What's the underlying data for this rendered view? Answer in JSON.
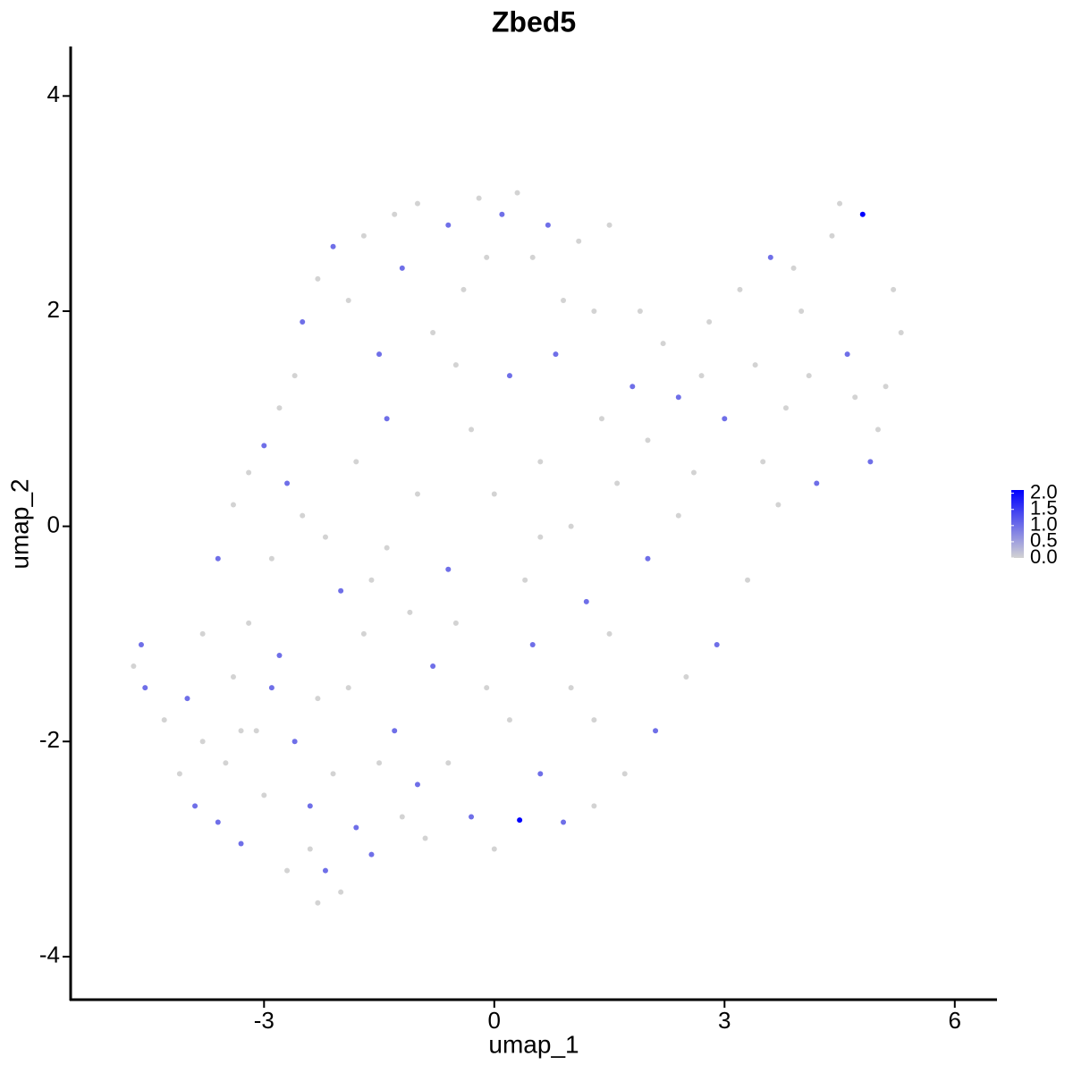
{
  "chart_data": {
    "type": "scatter",
    "title": "Zbed5",
    "x_label": "umap_1",
    "y_label": "umap_2",
    "x": [
      -4.7,
      -4.6,
      -4.55,
      -4.3,
      -4.1,
      -4.0,
      -3.9,
      -3.8,
      -3.6,
      -3.5,
      -3.4,
      -3.3,
      -3.2,
      -3.1,
      -3.0,
      -2.9,
      -2.8,
      -2.7,
      -2.6,
      -2.5,
      -2.4,
      -2.3,
      -2.2,
      -2.1,
      -2.0,
      -1.9,
      -1.8,
      -1.7,
      -1.6,
      -1.5,
      -1.4,
      -1.3,
      -1.2,
      -1.1,
      -1.0,
      -3.6,
      -3.4,
      -3.2,
      -3.0,
      -2.8,
      -2.6,
      -2.5,
      -2.3,
      -2.1,
      -1.9,
      -1.7,
      -1.5,
      -1.3,
      -1.2,
      -1.0,
      -0.8,
      -0.6,
      -0.4,
      -0.2,
      0.1,
      0.3,
      0.5,
      0.7,
      0.9,
      1.1,
      1.3,
      1.5,
      -2.7,
      -2.2,
      -1.8,
      -1.4,
      -1.0,
      -0.6,
      -0.3,
      0.0,
      0.2,
      0.4,
      0.6,
      0.8,
      1.0,
      1.2,
      1.4,
      1.6,
      1.8,
      2.0,
      2.2,
      2.4,
      2.6,
      2.8,
      3.0,
      3.2,
      3.4,
      3.6,
      3.8,
      4.0,
      4.2,
      4.4,
      4.6,
      4.8,
      5.0,
      5.2,
      5.3,
      4.9,
      4.5,
      4.1,
      3.7,
      3.3,
      2.9,
      2.5,
      2.1,
      1.7,
      1.3,
      0.9,
      0.33,
      0.0,
      -0.3,
      -0.6,
      -0.9,
      0.2,
      0.6,
      1.0,
      1.5,
      2.0,
      2.4,
      -0.8,
      -0.5,
      -0.1,
      0.5,
      1.3,
      -2.9,
      -3.8,
      -2.4,
      -2.0,
      -2.3,
      -0.1,
      -0.5,
      3.9,
      2.7,
      4.7,
      5.1,
      3.5,
      1.9,
      0.6,
      -1.6,
      -3.3
    ],
    "values_y": [
      -1.3,
      -1.1,
      -1.5,
      -1.8,
      -2.3,
      -1.6,
      -2.6,
      -2.0,
      -2.75,
      -2.2,
      -1.4,
      -2.95,
      -0.9,
      -1.9,
      -2.5,
      -0.3,
      -1.2,
      -3.2,
      -2.0,
      0.1,
      -3.0,
      -1.6,
      -3.2,
      -2.3,
      -0.6,
      -1.5,
      -2.8,
      -1.0,
      -3.05,
      -2.2,
      -0.2,
      -1.9,
      -2.7,
      -0.8,
      -2.4,
      -0.3,
      0.2,
      0.5,
      0.75,
      1.1,
      1.4,
      1.9,
      2.3,
      2.6,
      2.1,
      2.7,
      1.6,
      2.9,
      2.4,
      3.0,
      1.8,
      2.8,
      2.2,
      3.05,
      2.9,
      3.1,
      2.5,
      2.8,
      2.1,
      2.65,
      2.0,
      2.8,
      0.4,
      -0.1,
      0.6,
      1.0,
      0.3,
      -0.4,
      0.9,
      0.3,
      1.4,
      -0.5,
      0.6,
      1.6,
      0.0,
      -0.7,
      1.0,
      0.4,
      1.3,
      0.8,
      1.7,
      1.2,
      0.5,
      1.9,
      1.0,
      2.2,
      1.5,
      2.5,
      1.1,
      2.0,
      0.4,
      2.7,
      1.6,
      2.9,
      0.9,
      2.2,
      1.8,
      0.6,
      3.0,
      1.4,
      0.2,
      -0.5,
      -1.1,
      -1.4,
      -1.9,
      -2.3,
      -2.6,
      -2.75,
      -2.73,
      -3.0,
      -2.7,
      -2.2,
      -2.9,
      -1.8,
      -2.3,
      -1.5,
      -1.0,
      -0.3,
      0.1,
      -1.3,
      -0.9,
      -1.5,
      -1.1,
      -1.8,
      -1.5,
      -1.0,
      -2.6,
      -3.4,
      -3.5,
      2.5,
      1.5,
      2.4,
      1.4,
      1.2,
      1.3,
      0.6,
      2.0,
      -0.1,
      -0.5,
      -1.9
    ],
    "values": [
      0,
      1,
      1,
      0,
      0,
      1,
      1,
      0,
      1,
      0,
      0,
      1,
      0,
      0,
      0,
      0,
      1,
      0,
      1,
      0,
      0,
      0,
      1,
      0,
      1,
      0,
      1,
      0,
      1,
      0,
      0,
      1,
      0,
      0,
      1,
      1,
      0,
      0,
      1,
      0,
      0,
      1,
      0,
      1,
      0,
      0,
      1,
      0,
      1,
      0,
      0,
      1,
      0,
      0,
      1,
      0,
      0,
      1,
      0,
      0,
      0,
      0,
      1,
      0,
      0,
      1,
      0,
      1,
      0,
      0,
      1,
      0,
      0,
      1,
      0,
      1,
      0,
      0,
      1,
      0,
      0,
      1,
      0,
      0,
      1,
      0,
      0,
      1,
      0,
      0,
      1,
      0,
      1,
      2.1,
      0,
      0,
      0,
      1,
      0,
      0,
      0,
      0,
      1,
      0,
      1,
      0,
      0,
      1,
      2.1,
      0,
      1,
      0,
      0,
      0,
      1,
      0,
      0,
      1,
      0,
      1,
      0,
      0,
      1,
      0,
      1,
      0,
      1,
      0,
      0,
      0,
      0,
      0,
      0,
      0,
      0,
      0,
      0,
      0,
      0,
      0
    ],
    "xlim": [
      -5.52,
      6.55
    ],
    "ylim": [
      -4.4,
      4.46
    ],
    "xticks": [
      -3,
      0,
      3,
      6
    ],
    "yticks": [
      -4,
      -2,
      0,
      2,
      4
    ],
    "colorscale": [
      "#d3d3d3",
      "#0000ff"
    ],
    "clim": [
      0,
      2.1
    ],
    "colorbar_ticks": [
      {
        "value": 0,
        "label": "0.0"
      },
      0.5,
      {
        "value": 1,
        "label": "1.0"
      },
      1.5,
      {
        "value": 2,
        "label": "2.0"
      }
    ]
  }
}
